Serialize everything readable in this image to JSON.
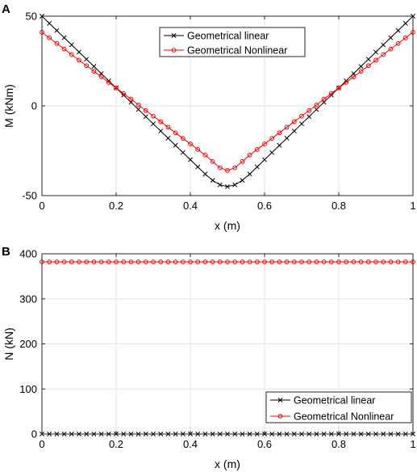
{
  "chart_data": [
    {
      "panel_label": "A",
      "type": "line",
      "xlabel": "x (m)",
      "ylabel": "M (kNm)",
      "xlim": [
        0,
        1
      ],
      "ylim": [
        -50,
        50
      ],
      "xticks": [
        0,
        0.2,
        0.4,
        0.6,
        0.8,
        1
      ],
      "xtick_labels": [
        "0",
        "0.2",
        "0.4",
        "0.6",
        "0.8",
        "1"
      ],
      "yticks": [
        -50,
        0,
        50
      ],
      "ytick_labels": [
        "-50",
        "0",
        "50"
      ],
      "grid": true,
      "legend_position": "top-center",
      "x": [
        0,
        0.02,
        0.04,
        0.06,
        0.08,
        0.1,
        0.12,
        0.14,
        0.16,
        0.18,
        0.2,
        0.22,
        0.24,
        0.26,
        0.28,
        0.3,
        0.32,
        0.34,
        0.36,
        0.38,
        0.4,
        0.42,
        0.44,
        0.46,
        0.48,
        0.5,
        0.52,
        0.54,
        0.56,
        0.58,
        0.6,
        0.62,
        0.64,
        0.66,
        0.68,
        0.7,
        0.72,
        0.74,
        0.76,
        0.78,
        0.8,
        0.82,
        0.84,
        0.86,
        0.88,
        0.9,
        0.92,
        0.94,
        0.96,
        0.98,
        1
      ],
      "series": [
        {
          "name": "Geometrical linear",
          "color": "#000000",
          "marker": "x",
          "values": [
            50,
            46,
            42,
            38,
            34,
            30,
            26,
            22,
            18,
            14,
            10,
            6,
            2,
            -2,
            -6,
            -10,
            -14,
            -18,
            -22,
            -26,
            -30,
            -34,
            -38,
            -41.5,
            -44,
            -45,
            -44,
            -41.5,
            -38,
            -34,
            -30,
            -26,
            -22,
            -18,
            -14,
            -10,
            -6,
            -2,
            2,
            6,
            10,
            14,
            18,
            22,
            26,
            30,
            34,
            38,
            42,
            46,
            50
          ]
        },
        {
          "name": "Geometrical Nonlinear",
          "color": "#ff0000",
          "marker": "o",
          "values": [
            41,
            37.9,
            34.8,
            31.7,
            28.6,
            25.5,
            22.4,
            19.3,
            16.2,
            13.1,
            10,
            6.9,
            3.8,
            0.5,
            -2.6,
            -5.7,
            -8.8,
            -11.9,
            -15,
            -18.1,
            -21.2,
            -24.3,
            -27.4,
            -31,
            -34.5,
            -36,
            -34.5,
            -31,
            -27.4,
            -24.3,
            -21.2,
            -18.1,
            -15,
            -11.9,
            -8.8,
            -5.7,
            -2.6,
            0.5,
            3.8,
            6.9,
            10,
            13.1,
            16.2,
            19.3,
            22.4,
            25.5,
            28.6,
            31.7,
            34.8,
            37.9,
            41
          ]
        }
      ]
    },
    {
      "panel_label": "B",
      "type": "line",
      "xlabel": "x (m)",
      "ylabel": "N (kN)",
      "xlim": [
        0,
        1
      ],
      "ylim": [
        0,
        400
      ],
      "xticks": [
        0,
        0.2,
        0.4,
        0.6,
        0.8,
        1
      ],
      "xtick_labels": [
        "0",
        "0.2",
        "0.4",
        "0.6",
        "0.8",
        "1"
      ],
      "yticks": [
        0,
        100,
        200,
        300,
        400
      ],
      "ytick_labels": [
        "0",
        "100",
        "200",
        "300",
        "400"
      ],
      "grid": true,
      "legend_position": "bottom-right",
      "x": [
        0,
        0.02,
        0.04,
        0.06,
        0.08,
        0.1,
        0.12,
        0.14,
        0.16,
        0.18,
        0.2,
        0.22,
        0.24,
        0.26,
        0.28,
        0.3,
        0.32,
        0.34,
        0.36,
        0.38,
        0.4,
        0.42,
        0.44,
        0.46,
        0.48,
        0.5,
        0.52,
        0.54,
        0.56,
        0.58,
        0.6,
        0.62,
        0.64,
        0.66,
        0.68,
        0.7,
        0.72,
        0.74,
        0.76,
        0.78,
        0.8,
        0.82,
        0.84,
        0.86,
        0.88,
        0.9,
        0.92,
        0.94,
        0.96,
        0.98,
        1
      ],
      "series": [
        {
          "name": "Geometrical linear",
          "color": "#000000",
          "marker": "x",
          "values": [
            0,
            0,
            0,
            0,
            0,
            0,
            0,
            0,
            0,
            0,
            0,
            0,
            0,
            0,
            0,
            0,
            0,
            0,
            0,
            0,
            0,
            0,
            0,
            0,
            0,
            0,
            0,
            0,
            0,
            0,
            0,
            0,
            0,
            0,
            0,
            0,
            0,
            0,
            0,
            0,
            0,
            0,
            0,
            0,
            0,
            0,
            0,
            0,
            0,
            0,
            0
          ]
        },
        {
          "name": "Geometrical Nonlinear",
          "color": "#ff0000",
          "marker": "o",
          "values": [
            382,
            382,
            382,
            382,
            382,
            382,
            382,
            382,
            382,
            382,
            382,
            382,
            382,
            382,
            382,
            382,
            382,
            382,
            382,
            382,
            382,
            382,
            382,
            382,
            382,
            382,
            382,
            382,
            382,
            382,
            382,
            382,
            382,
            382,
            382,
            382,
            382,
            382,
            382,
            382,
            382,
            382,
            382,
            382,
            382,
            382,
            382,
            382,
            382,
            382,
            382
          ]
        }
      ]
    }
  ]
}
